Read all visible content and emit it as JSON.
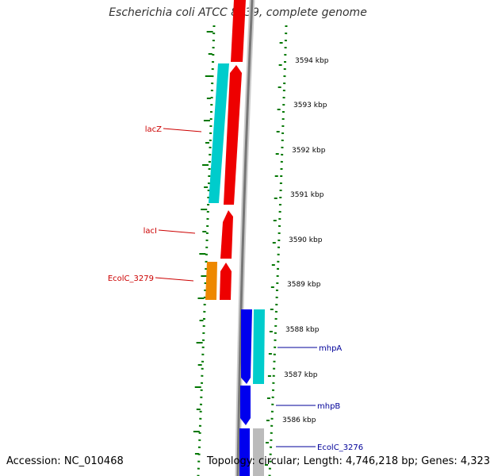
{
  "title": "Escherichia coli ATCC 8739, complete genome",
  "accession_text": "Accession: NC_010468",
  "topology_text": "Topology: circular; Length: 4,746,218 bp; Genes: 4,323",
  "colors": {
    "backbone": "#999999",
    "ticks": "#007700",
    "forward_label": "#cc0000",
    "reverse_label": "#000099",
    "red": "#ee0000",
    "cyan": "#00cccc",
    "orange": "#ee8800",
    "blue": "#0000ee",
    "gray": "#bbbbbb"
  },
  "kbp_labels": [
    "3594 kbp",
    "3593 kbp",
    "3592 kbp",
    "3591 kbp",
    "3590 kbp",
    "3589 kbp",
    "3588 kbp",
    "3587 kbp",
    "3586 kbp"
  ],
  "gene_labels": [
    "lacZ",
    "lacI",
    "EcolC_3279",
    "mhpA",
    "mhpB",
    "EcolC_3276"
  ]
}
